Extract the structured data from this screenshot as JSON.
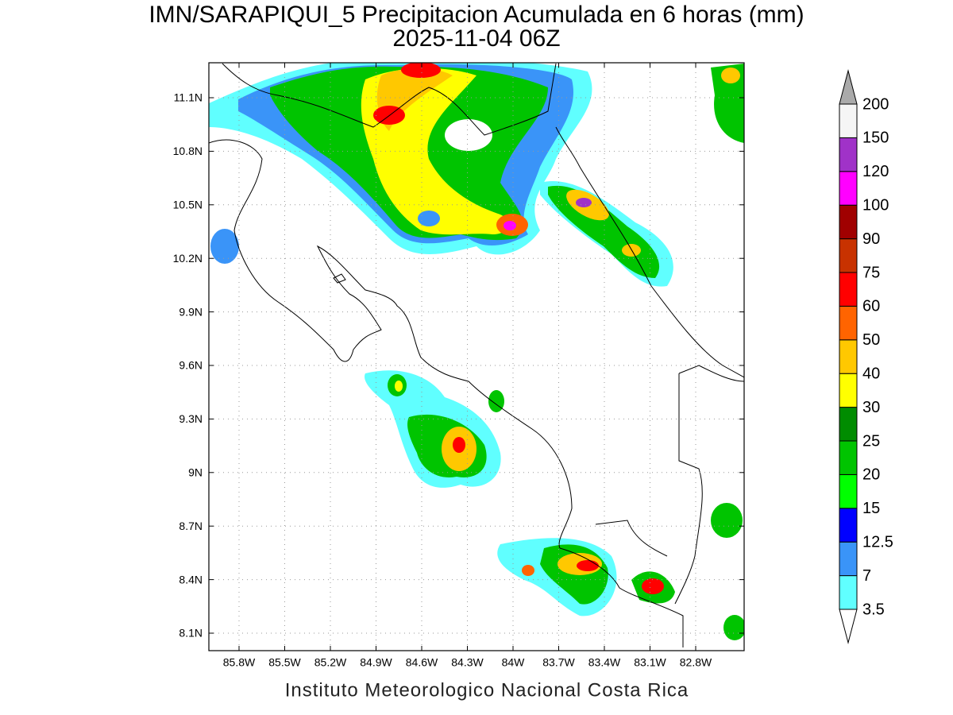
{
  "title": "IMN/SARAPIQUI_5 Precipitacion Acumulada en 6 horas (mm)",
  "subtitle": "2025-11-04 06Z",
  "map": {
    "lat_ticks": [
      "8.1N",
      "8.4N",
      "8.7N",
      "9N",
      "9.3N",
      "9.6N",
      "9.9N",
      "10.2N",
      "10.5N",
      "10.8N",
      "11.1N"
    ],
    "lon_ticks": [
      "85.8W",
      "85.5W",
      "85.2W",
      "84.9W",
      "84.6W",
      "84.3W",
      "84W",
      "83.7W",
      "83.4W",
      "83.1W",
      "82.8W"
    ]
  },
  "colorbar": {
    "levels": [
      3.5,
      7,
      12.5,
      15,
      20,
      25,
      30,
      40,
      50,
      60,
      75,
      90,
      100,
      120,
      150,
      200
    ],
    "colors": [
      "#60ffff",
      "#3a94f8",
      "#0000ff",
      "#00ff00",
      "#00c400",
      "#008c00",
      "#ffff00",
      "#ffc800",
      "#ff6400",
      "#ff0000",
      "#c83200",
      "#a00000",
      "#ff00ff",
      "#a032c8",
      "#f5f5f5"
    ],
    "under_color": "#ffffff",
    "over_color": "#aaaaaa"
  },
  "footer": "Instituto Meteorologico Nacional Costa Rica"
}
